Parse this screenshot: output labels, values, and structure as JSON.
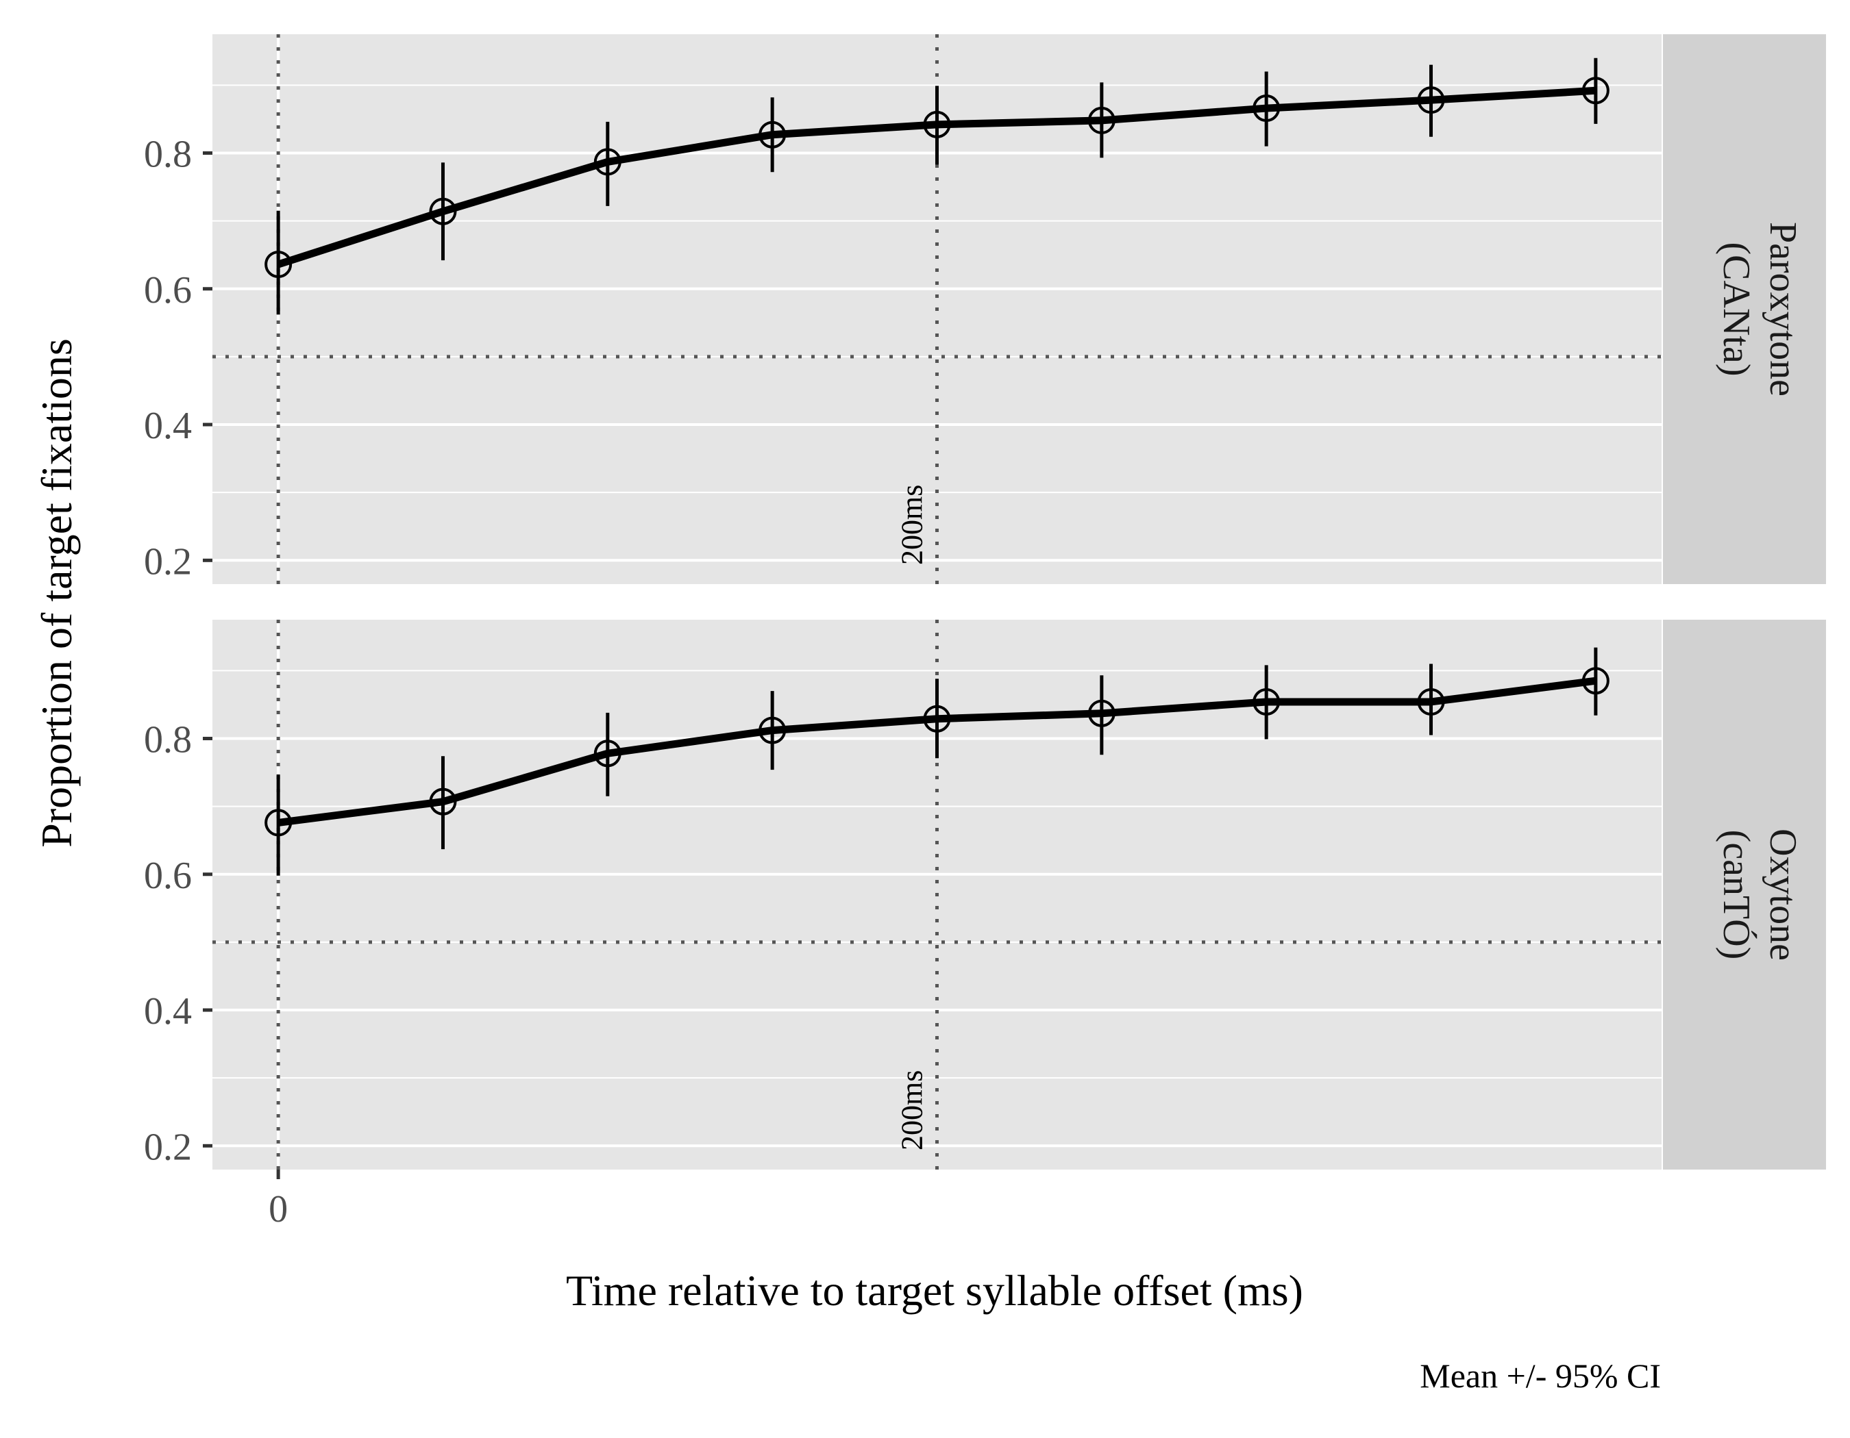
{
  "chart_data": {
    "type": "line",
    "xlabel": "Time relative to target syllable offset (ms)",
    "ylabel": "Proportion of target fixations",
    "caption": "Mean +/- 95% CI",
    "x_tick_labels": [
      "0"
    ],
    "y_tick_labels": [
      "0.2",
      "0.4",
      "0.6",
      "0.8"
    ],
    "y_ticks": [
      0.2,
      0.4,
      0.6,
      0.8
    ],
    "xlim": [
      -40,
      840
    ],
    "ylim": [
      0.165,
      0.975
    ],
    "reference_lines": {
      "y": 0.5,
      "x": [
        0,
        400
      ]
    },
    "annotation": "200ms",
    "x": [
      0,
      100,
      200,
      300,
      400,
      500,
      600,
      700,
      800
    ],
    "grid": true,
    "legend": "none",
    "colors": {
      "panel_bg": "#e5e5e5",
      "strip_bg": "#d1d1d1",
      "line": "#000000",
      "grid": "#ffffff"
    },
    "panels": [
      {
        "strip": [
          "Paroxytone",
          "(CANta)"
        ],
        "mean": [
          0.636,
          0.714,
          0.787,
          0.827,
          0.842,
          0.848,
          0.866,
          0.878,
          0.892
        ],
        "lower": [
          0.562,
          0.642,
          0.722,
          0.772,
          0.783,
          0.793,
          0.81,
          0.824,
          0.843
        ],
        "upper": [
          0.715,
          0.786,
          0.846,
          0.882,
          0.899,
          0.904,
          0.92,
          0.93,
          0.94
        ]
      },
      {
        "strip": [
          "Oxytone",
          "(canTÓ)"
        ],
        "mean": [
          0.676,
          0.707,
          0.778,
          0.812,
          0.829,
          0.837,
          0.854,
          0.854,
          0.885
        ],
        "lower": [
          0.598,
          0.637,
          0.715,
          0.754,
          0.771,
          0.776,
          0.799,
          0.805,
          0.834
        ],
        "upper": [
          0.747,
          0.774,
          0.838,
          0.87,
          0.888,
          0.893,
          0.908,
          0.91,
          0.934
        ]
      }
    ]
  }
}
